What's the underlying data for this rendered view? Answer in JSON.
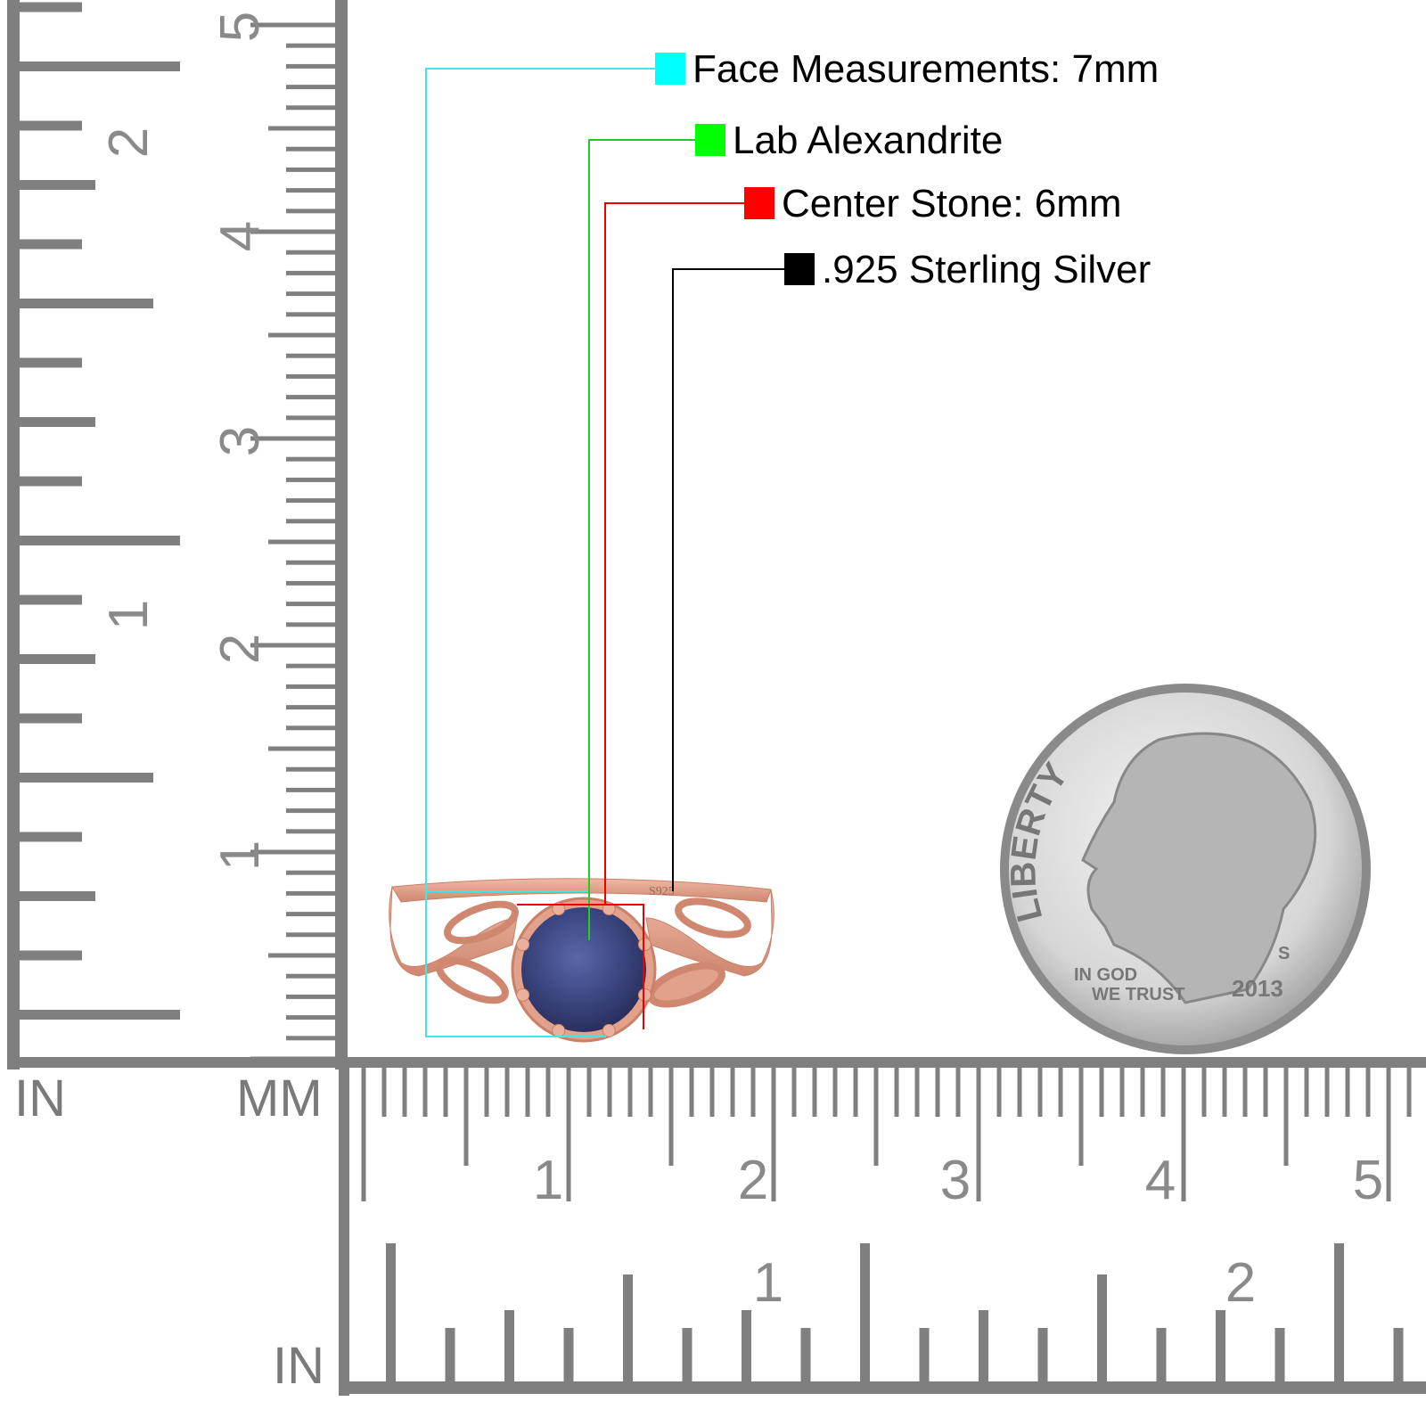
{
  "legend": [
    {
      "label": "Face Measurements: 7mm",
      "color": "#00ffff"
    },
    {
      "label": "Lab Alexandrite",
      "color": "#00ff00"
    },
    {
      "label": "Center Stone: 6mm",
      "color": "#ff0000"
    },
    {
      "label": ".925 Sterling Silver",
      "color": "#000000"
    }
  ],
  "rulers": {
    "left_inch_unit": "IN",
    "left_mm_unit": "MM",
    "bottom_inch_unit": "IN",
    "left_inch_labels": [
      "1",
      "2"
    ],
    "left_mm_labels": [
      "1",
      "2",
      "3",
      "4",
      "5"
    ],
    "bottom_mm_labels": [
      "1",
      "2",
      "3",
      "4",
      "5"
    ],
    "bottom_inch_labels": [
      "1",
      "2"
    ],
    "color": "#7f7f7f"
  },
  "ring": {
    "stamp": "S925",
    "metal_color": "#e3a08a",
    "stone_color": "#3b4680"
  },
  "coin": {
    "legend_text": "LIBERTY",
    "motto_1": "IN GOD",
    "motto_2": "WE TRUST",
    "year": "2013",
    "mint_mark": "S"
  }
}
